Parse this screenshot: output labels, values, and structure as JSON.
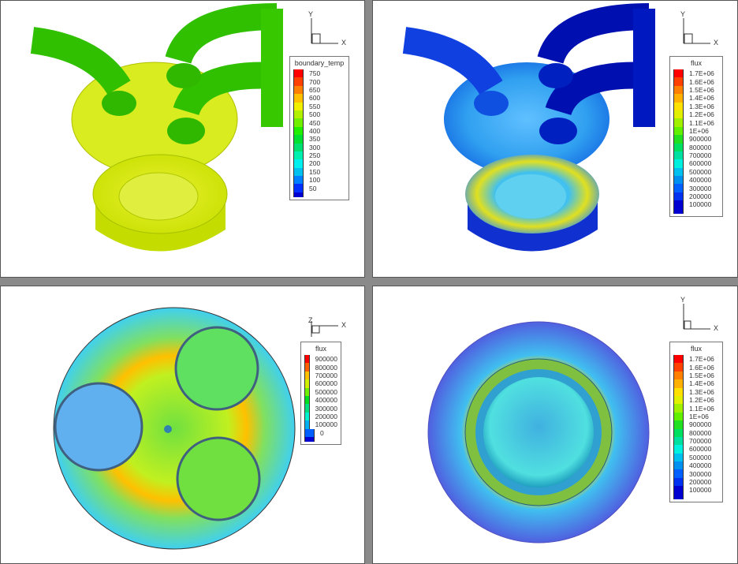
{
  "panels": [
    {
      "id": "p1",
      "view": "isometric",
      "legend": {
        "title": "boundary_temp",
        "labels": [
          "750",
          "700",
          "650",
          "600",
          "550",
          "500",
          "450",
          "400",
          "350",
          "300",
          "250",
          "200",
          "150",
          "100",
          "50"
        ],
        "colors": [
          "#ff0000",
          "#ff4000",
          "#ff8000",
          "#ffc000",
          "#f0f000",
          "#b0f000",
          "#70f000",
          "#20f000",
          "#00e030",
          "#00e070",
          "#00f0b0",
          "#00f0f0",
          "#00c0f0",
          "#0080ff",
          "#0030ff",
          "#0000d0"
        ]
      },
      "axes": {
        "x": "X",
        "y": "Y"
      }
    },
    {
      "id": "p2",
      "view": "isometric",
      "legend": {
        "title": "flux",
        "labels": [
          "1.7E+06",
          "1.6E+06",
          "1.5E+06",
          "1.4E+06",
          "1.3E+06",
          "1.2E+06",
          "1.1E+06",
          "1E+06",
          "900000",
          "800000",
          "700000",
          "600000",
          "500000",
          "400000",
          "300000",
          "200000",
          "100000"
        ],
        "colors": [
          "#ff0000",
          "#ff4000",
          "#ff8000",
          "#ffb000",
          "#ffe000",
          "#e0f000",
          "#a0f000",
          "#60f000",
          "#20e020",
          "#00e060",
          "#00e0a0",
          "#00f0e0",
          "#00c0f0",
          "#0090f0",
          "#0060ff",
          "#0030f0",
          "#0000d0"
        ]
      },
      "axes": {
        "x": "X",
        "y": "Y"
      }
    },
    {
      "id": "p3",
      "view": "top-down",
      "legend": {
        "title": "flux",
        "labels": [
          "900000",
          "800000",
          "700000",
          "600000",
          "500000",
          "400000",
          "300000",
          "200000",
          "100000",
          "0"
        ],
        "colors": [
          "#ff0000",
          "#ff6000",
          "#ffc000",
          "#d0f000",
          "#70f000",
          "#00e020",
          "#00e080",
          "#00f0d0",
          "#00b0f0",
          "#0060ff",
          "#0000d0"
        ]
      },
      "axes": {
        "x": "X",
        "y": "Z"
      }
    },
    {
      "id": "p4",
      "view": "bottom-up",
      "legend": {
        "title": "flux",
        "labels": [
          "1.7E+06",
          "1.6E+06",
          "1.5E+06",
          "1.4E+06",
          "1.3E+06",
          "1.2E+06",
          "1.1E+06",
          "1E+06",
          "900000",
          "800000",
          "700000",
          "600000",
          "500000",
          "400000",
          "300000",
          "200000",
          "100000"
        ],
        "colors": [
          "#ff0000",
          "#ff4000",
          "#ff8000",
          "#ffb000",
          "#ffe000",
          "#e0f000",
          "#a0f000",
          "#60f000",
          "#20e020",
          "#00e060",
          "#00e0a0",
          "#00f0e0",
          "#00c0f0",
          "#0090f0",
          "#0060ff",
          "#0030f0",
          "#0000d0"
        ]
      },
      "axes": {
        "x": "X",
        "y": "Y"
      }
    }
  ]
}
